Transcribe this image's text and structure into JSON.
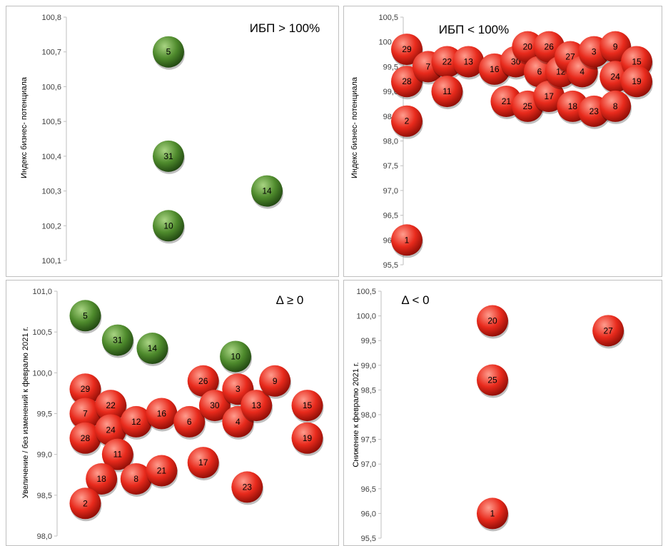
{
  "colors": {
    "green_bubble": "#4e8a2c",
    "red_bubble": "#e82a1c",
    "axis_line": "#bfbfbf",
    "tick_text": "#404040"
  },
  "chart_data": [
    {
      "type": "scatter",
      "title": "ИБП > 100%",
      "ylabel": "Индекс бизнес- потенциала",
      "xlabel": "",
      "ylim": [
        100.1,
        100.8
      ],
      "xlim": [
        0,
        10
      ],
      "yticks": [
        "100,8",
        "100,7",
        "100,6",
        "100,5",
        "100,4",
        "100,3",
        "100,2",
        "100,1"
      ],
      "grid": false,
      "points": [
        {
          "label": "5",
          "x": 2.9,
          "y": 100.7,
          "color": "green"
        },
        {
          "label": "31",
          "x": 2.9,
          "y": 100.4,
          "color": "green"
        },
        {
          "label": "14",
          "x": 7.5,
          "y": 100.3,
          "color": "green"
        },
        {
          "label": "10",
          "x": 2.9,
          "y": 100.2,
          "color": "green"
        }
      ]
    },
    {
      "type": "scatter",
      "title": "ИБП < 100%",
      "ylabel": "Индекс бизнес- потенциала",
      "xlabel": "",
      "ylim": [
        95.5,
        100.5
      ],
      "xlim": [
        0,
        10
      ],
      "yticks": [
        "100,5",
        "100,0",
        "99,5",
        "99,0",
        "98,5",
        "98,0",
        "97,5",
        "97,0",
        "96,5",
        "96,0",
        "95,5"
      ],
      "grid": false,
      "points": [
        {
          "label": "29",
          "x": 0.0,
          "y": 99.85,
          "color": "red"
        },
        {
          "label": "28",
          "x": 0.0,
          "y": 99.2,
          "color": "red"
        },
        {
          "label": "7",
          "x": 0.9,
          "y": 99.5,
          "color": "red"
        },
        {
          "label": "22",
          "x": 1.7,
          "y": 99.6,
          "color": "red"
        },
        {
          "label": "11",
          "x": 1.7,
          "y": 99.0,
          "color": "red"
        },
        {
          "label": "13",
          "x": 2.6,
          "y": 99.6,
          "color": "red"
        },
        {
          "label": "16",
          "x": 3.7,
          "y": 99.45,
          "color": "red"
        },
        {
          "label": "21",
          "x": 4.2,
          "y": 98.8,
          "color": "red"
        },
        {
          "label": "30",
          "x": 4.6,
          "y": 99.6,
          "color": "red"
        },
        {
          "label": "25",
          "x": 5.1,
          "y": 98.7,
          "color": "red"
        },
        {
          "label": "20",
          "x": 5.1,
          "y": 99.9,
          "color": "red"
        },
        {
          "label": "6",
          "x": 5.6,
          "y": 99.4,
          "color": "red"
        },
        {
          "label": "26",
          "x": 6.0,
          "y": 99.9,
          "color": "red"
        },
        {
          "label": "17",
          "x": 6.0,
          "y": 98.9,
          "color": "red"
        },
        {
          "label": "12",
          "x": 6.5,
          "y": 99.4,
          "color": "red"
        },
        {
          "label": "27",
          "x": 6.9,
          "y": 99.7,
          "color": "red"
        },
        {
          "label": "18",
          "x": 7.0,
          "y": 98.7,
          "color": "red"
        },
        {
          "label": "4",
          "x": 7.4,
          "y": 99.4,
          "color": "red"
        },
        {
          "label": "3",
          "x": 7.9,
          "y": 99.8,
          "color": "red"
        },
        {
          "label": "23",
          "x": 7.9,
          "y": 98.6,
          "color": "red"
        },
        {
          "label": "9",
          "x": 8.8,
          "y": 99.9,
          "color": "red"
        },
        {
          "label": "24",
          "x": 8.8,
          "y": 99.3,
          "color": "red"
        },
        {
          "label": "8",
          "x": 8.8,
          "y": 98.7,
          "color": "red"
        },
        {
          "label": "15",
          "x": 9.7,
          "y": 99.6,
          "color": "red"
        },
        {
          "label": "19",
          "x": 9.7,
          "y": 99.2,
          "color": "red"
        },
        {
          "label": "2",
          "x": 0.0,
          "y": 98.4,
          "color": "red"
        },
        {
          "label": "1",
          "x": 0.0,
          "y": 96.0,
          "color": "red"
        }
      ]
    },
    {
      "type": "scatter",
      "title": "Δ ≥ 0",
      "ylabel": "Увеличение / без изменений к февралю 2021 г.",
      "xlabel": "",
      "ylim": [
        98.0,
        101.0
      ],
      "xlim": [
        0,
        10
      ],
      "yticks": [
        "101,0",
        "100,5",
        "100,0",
        "99,5",
        "99,0",
        "98,5",
        "98,0"
      ],
      "grid": false,
      "points": [
        {
          "label": "5",
          "x": 0.2,
          "y": 100.7,
          "color": "green"
        },
        {
          "label": "31",
          "x": 1.6,
          "y": 100.4,
          "color": "green"
        },
        {
          "label": "14",
          "x": 3.1,
          "y": 100.3,
          "color": "green"
        },
        {
          "label": "10",
          "x": 6.7,
          "y": 100.2,
          "color": "green"
        },
        {
          "label": "29",
          "x": 0.2,
          "y": 99.8,
          "color": "red"
        },
        {
          "label": "7",
          "x": 0.2,
          "y": 99.5,
          "color": "red"
        },
        {
          "label": "28",
          "x": 0.2,
          "y": 99.2,
          "color": "red"
        },
        {
          "label": "22",
          "x": 1.3,
          "y": 99.6,
          "color": "red"
        },
        {
          "label": "24",
          "x": 1.3,
          "y": 99.3,
          "color": "red"
        },
        {
          "label": "11",
          "x": 1.6,
          "y": 99.0,
          "color": "red"
        },
        {
          "label": "18",
          "x": 0.9,
          "y": 98.7,
          "color": "red"
        },
        {
          "label": "2",
          "x": 0.2,
          "y": 98.4,
          "color": "red"
        },
        {
          "label": "12",
          "x": 2.4,
          "y": 99.4,
          "color": "red"
        },
        {
          "label": "8",
          "x": 2.4,
          "y": 98.7,
          "color": "red"
        },
        {
          "label": "16",
          "x": 3.5,
          "y": 99.5,
          "color": "red"
        },
        {
          "label": "21",
          "x": 3.5,
          "y": 98.8,
          "color": "red"
        },
        {
          "label": "6",
          "x": 4.7,
          "y": 99.4,
          "color": "red"
        },
        {
          "label": "26",
          "x": 5.3,
          "y": 99.9,
          "color": "red"
        },
        {
          "label": "17",
          "x": 5.3,
          "y": 98.9,
          "color": "red"
        },
        {
          "label": "30",
          "x": 5.8,
          "y": 99.6,
          "color": "red"
        },
        {
          "label": "3",
          "x": 6.8,
          "y": 99.8,
          "color": "red"
        },
        {
          "label": "4",
          "x": 6.8,
          "y": 99.4,
          "color": "red"
        },
        {
          "label": "13",
          "x": 7.6,
          "y": 99.6,
          "color": "red"
        },
        {
          "label": "9",
          "x": 8.4,
          "y": 99.9,
          "color": "red"
        },
        {
          "label": "15",
          "x": 9.8,
          "y": 99.6,
          "color": "red"
        },
        {
          "label": "19",
          "x": 9.8,
          "y": 99.2,
          "color": "red"
        },
        {
          "label": "23",
          "x": 7.2,
          "y": 98.6,
          "color": "red"
        }
      ]
    },
    {
      "type": "scatter",
      "title": "Δ < 0",
      "ylabel": "Снижение к февралю 2021 г.",
      "xlabel": "",
      "ylim": [
        95.5,
        100.5
      ],
      "xlim": [
        0,
        10
      ],
      "yticks": [
        "100,5",
        "100,0",
        "99,5",
        "99,0",
        "98,5",
        "98,0",
        "97,5",
        "97,0",
        "96,5",
        "96,0",
        "95,5"
      ],
      "grid": false,
      "points": [
        {
          "label": "20",
          "x": 4.0,
          "y": 99.9,
          "color": "red"
        },
        {
          "label": "27",
          "x": 8.7,
          "y": 99.7,
          "color": "red"
        },
        {
          "label": "25",
          "x": 4.0,
          "y": 98.7,
          "color": "red"
        },
        {
          "label": "1",
          "x": 4.0,
          "y": 96.0,
          "color": "red"
        }
      ]
    }
  ]
}
